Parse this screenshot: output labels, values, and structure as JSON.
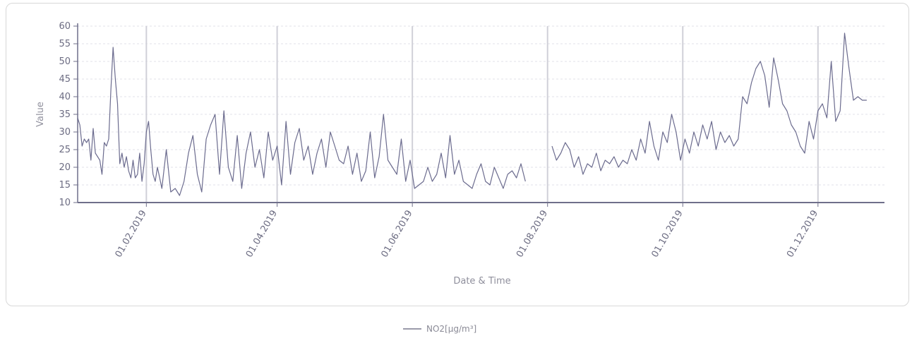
{
  "chart_data": {
    "type": "line",
    "xlabel": "Date & Time",
    "ylabel": "Value",
    "ylim": [
      10,
      60
    ],
    "y_ticks": [
      10,
      15,
      20,
      25,
      30,
      35,
      40,
      45,
      50,
      55,
      60
    ],
    "x_range": [
      "2019-01-01",
      "2019-12-31"
    ],
    "x_ticks": [
      {
        "date": "2019-02-01",
        "label": "01.02.2019"
      },
      {
        "date": "2019-04-01",
        "label": "01.04.2019"
      },
      {
        "date": "2019-06-01",
        "label": "01.06.2019"
      },
      {
        "date": "2019-08-01",
        "label": "01.08.2019"
      },
      {
        "date": "2019-10-01",
        "label": "01.10.2019"
      },
      {
        "date": "2019-12-01",
        "label": "01.12.2019"
      }
    ],
    "grid": true,
    "legend_position": "bottom-center",
    "series": [
      {
        "name": "NO2[µg/m³]",
        "color": "#6b6b8e",
        "segments": [
          {
            "x": [
              "2019-01-01",
              "2019-01-02",
              "2019-01-03",
              "2019-01-04",
              "2019-01-05",
              "2019-01-06",
              "2019-01-07",
              "2019-01-08",
              "2019-01-09",
              "2019-01-10",
              "2019-01-11",
              "2019-01-12",
              "2019-01-13",
              "2019-01-14",
              "2019-01-15",
              "2019-01-16",
              "2019-01-17",
              "2019-01-18",
              "2019-01-19",
              "2019-01-20",
              "2019-01-21",
              "2019-01-22",
              "2019-01-23",
              "2019-01-24",
              "2019-01-25",
              "2019-01-26",
              "2019-01-27",
              "2019-01-28",
              "2019-01-29",
              "2019-01-30",
              "2019-01-31",
              "2019-02-01",
              "2019-02-02",
              "2019-02-03",
              "2019-02-04",
              "2019-02-05",
              "2019-02-06",
              "2019-02-07",
              "2019-02-08",
              "2019-02-10",
              "2019-02-12",
              "2019-02-14",
              "2019-02-16",
              "2019-02-18",
              "2019-02-20",
              "2019-02-22",
              "2019-02-24",
              "2019-02-26",
              "2019-02-28",
              "2019-03-02",
              "2019-03-04",
              "2019-03-06",
              "2019-03-08",
              "2019-03-10",
              "2019-03-12",
              "2019-03-14",
              "2019-03-16",
              "2019-03-18",
              "2019-03-20",
              "2019-03-22",
              "2019-03-24",
              "2019-03-26",
              "2019-03-28",
              "2019-03-30",
              "2019-04-01",
              "2019-04-03",
              "2019-04-05",
              "2019-04-07",
              "2019-04-09",
              "2019-04-11",
              "2019-04-13",
              "2019-04-15",
              "2019-04-17",
              "2019-04-19",
              "2019-04-21",
              "2019-04-23",
              "2019-04-25",
              "2019-04-27",
              "2019-04-29",
              "2019-05-01",
              "2019-05-03",
              "2019-05-05",
              "2019-05-07",
              "2019-05-09",
              "2019-05-11",
              "2019-05-13",
              "2019-05-15",
              "2019-05-17",
              "2019-05-19",
              "2019-05-21",
              "2019-05-23",
              "2019-05-25",
              "2019-05-27",
              "2019-05-29",
              "2019-05-31",
              "2019-06-02",
              "2019-06-04",
              "2019-06-06",
              "2019-06-08",
              "2019-06-10",
              "2019-06-12",
              "2019-06-14",
              "2019-06-16",
              "2019-06-18",
              "2019-06-20",
              "2019-06-22",
              "2019-06-24",
              "2019-06-26",
              "2019-06-28",
              "2019-06-30",
              "2019-07-02",
              "2019-07-04",
              "2019-07-06",
              "2019-07-08",
              "2019-07-10",
              "2019-07-12",
              "2019-07-14",
              "2019-07-16",
              "2019-07-18",
              "2019-07-20",
              "2019-07-22"
            ],
            "y": [
              34,
              32,
              26,
              28,
              27,
              28,
              22,
              31,
              24,
              23,
              22,
              18,
              27,
              26,
              28,
              42,
              54,
              45,
              38,
              21,
              24,
              20,
              23,
              19,
              17,
              22,
              17,
              18,
              24,
              16,
              21,
              30,
              33,
              25,
              18,
              16,
              20,
              17,
              14,
              25,
              13,
              14,
              12,
              16,
              24,
              29,
              18,
              13,
              28,
              32,
              35,
              18,
              36,
              20,
              16,
              29,
              14,
              24,
              30,
              20,
              25,
              17,
              30,
              22,
              26,
              15,
              33,
              18,
              27,
              31,
              22,
              26,
              18,
              24,
              28,
              20,
              30,
              26,
              22,
              21,
              26,
              18,
              24,
              16,
              19,
              30,
              17,
              23,
              35,
              22,
              20,
              18,
              28,
              16,
              22,
              14,
              15,
              16,
              20,
              16,
              18,
              24,
              17,
              29,
              18,
              22,
              16,
              15,
              14,
              18,
              21,
              16,
              15,
              20,
              17,
              14,
              18,
              19,
              17,
              21,
              16
            ]
          },
          {
            "x": [
              "2019-08-03",
              "2019-08-05",
              "2019-08-07",
              "2019-08-09",
              "2019-08-11",
              "2019-08-13",
              "2019-08-15",
              "2019-08-17",
              "2019-08-19",
              "2019-08-21",
              "2019-08-23",
              "2019-08-25",
              "2019-08-27",
              "2019-08-29",
              "2019-08-31",
              "2019-09-02",
              "2019-09-04",
              "2019-09-06",
              "2019-09-08",
              "2019-09-10",
              "2019-09-12",
              "2019-09-14",
              "2019-09-16",
              "2019-09-18",
              "2019-09-20",
              "2019-09-22",
              "2019-09-24",
              "2019-09-26",
              "2019-09-28",
              "2019-09-30",
              "2019-10-02",
              "2019-10-04",
              "2019-10-06",
              "2019-10-08",
              "2019-10-10",
              "2019-10-12",
              "2019-10-14",
              "2019-10-16",
              "2019-10-18",
              "2019-10-20",
              "2019-10-22",
              "2019-10-24",
              "2019-10-26",
              "2019-10-28",
              "2019-10-30",
              "2019-11-01",
              "2019-11-03",
              "2019-11-05",
              "2019-11-07",
              "2019-11-09",
              "2019-11-11",
              "2019-11-13",
              "2019-11-15",
              "2019-11-17",
              "2019-11-19",
              "2019-11-21",
              "2019-11-23",
              "2019-11-25",
              "2019-11-27",
              "2019-11-29",
              "2019-12-01",
              "2019-12-03",
              "2019-12-05",
              "2019-12-07",
              "2019-12-09",
              "2019-12-11",
              "2019-12-13",
              "2019-12-15",
              "2019-12-17",
              "2019-12-19",
              "2019-12-21",
              "2019-12-23"
            ],
            "y": [
              26,
              22,
              24,
              27,
              25,
              20,
              23,
              18,
              21,
              20,
              24,
              19,
              22,
              21,
              23,
              20,
              22,
              21,
              25,
              22,
              28,
              24,
              33,
              26,
              22,
              30,
              27,
              35,
              30,
              22,
              28,
              24,
              30,
              26,
              32,
              28,
              33,
              25,
              30,
              27,
              29,
              26,
              28,
              40,
              38,
              44,
              48,
              50,
              46,
              37,
              51,
              45,
              38,
              36,
              32,
              30,
              26,
              24,
              33,
              28,
              36,
              38,
              34,
              50,
              33,
              36,
              58,
              48,
              39,
              40,
              39,
              39
            ]
          }
        ]
      }
    ]
  }
}
